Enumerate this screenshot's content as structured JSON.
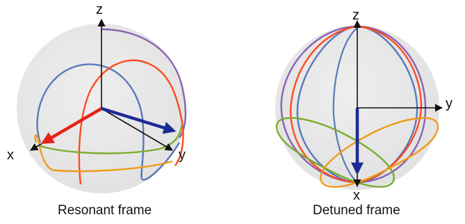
{
  "left_panel": {
    "caption": "Resonant frame",
    "axes": {
      "z": "z",
      "x": "x",
      "y": "y"
    }
  },
  "right_panel": {
    "caption": "Detuned frame",
    "axes": {
      "z": "z",
      "x": "x",
      "y": "y"
    }
  },
  "colors": {
    "sphere": "#e6e6e6",
    "purple": "#8a62b2",
    "blue": "#5a78b8",
    "red": "#ff4a1f",
    "orange": "#ef9a16",
    "green": "#7aac2a",
    "vector_red": "#e8221a",
    "vector_blue": "#1c2a96"
  }
}
